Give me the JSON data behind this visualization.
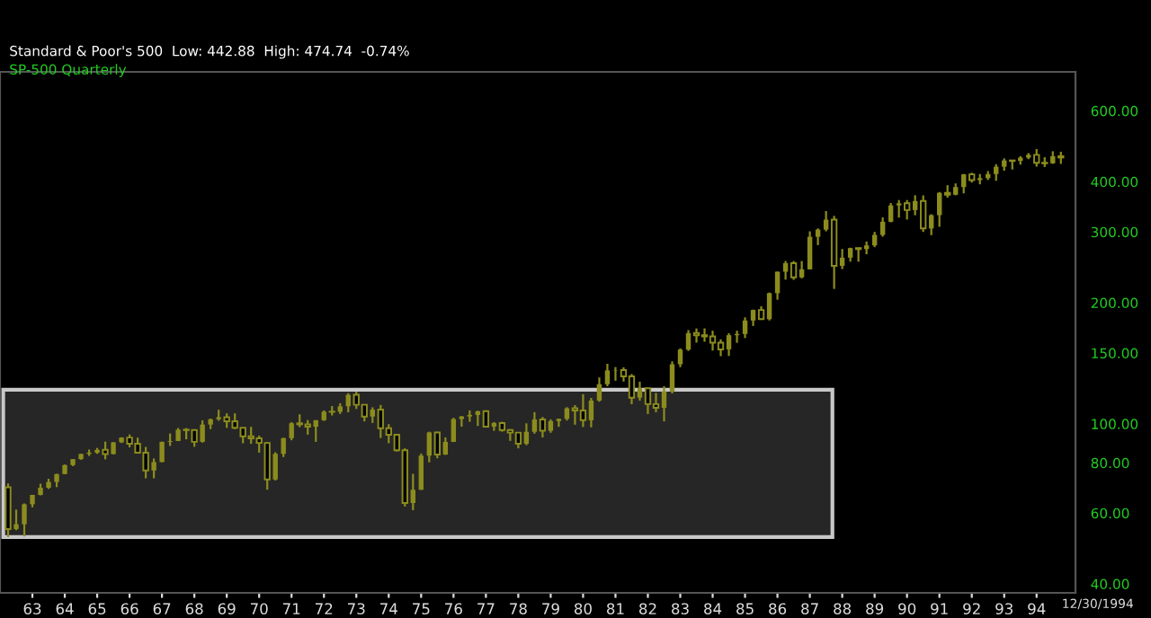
{
  "chart_data": {
    "type": "candlestick",
    "title": "Standard & Poor's 500  Low: 442.88  High: 474.74  -0.74%",
    "subtitle": "SP-500 Quarterly",
    "annotations": [
      "12/30/1994"
    ],
    "color": "#8c8c1e",
    "log": "y",
    "xlim": [
      1962.0,
      1995.2
    ],
    "ylim": [
      38,
      750
    ],
    "yticks": [
      {
        "value": 40,
        "label": "40.00"
      },
      {
        "value": 60,
        "label": "60.00"
      },
      {
        "value": 80,
        "label": "80.00"
      },
      {
        "value": 100,
        "label": "100.00"
      },
      {
        "value": 150,
        "label": "150.00"
      },
      {
        "value": 200,
        "label": "200.00"
      },
      {
        "value": 300,
        "label": "300.00"
      },
      {
        "value": 400,
        "label": "400.00"
      },
      {
        "value": 600,
        "label": "600.00"
      }
    ],
    "xticks": [
      {
        "value": 1963,
        "label": "63"
      },
      {
        "value": 1964,
        "label": "64"
      },
      {
        "value": 1965,
        "label": "65"
      },
      {
        "value": 1966,
        "label": "66"
      },
      {
        "value": 1967,
        "label": "67"
      },
      {
        "value": 1968,
        "label": "68"
      },
      {
        "value": 1969,
        "label": "69"
      },
      {
        "value": 1970,
        "label": "70"
      },
      {
        "value": 1971,
        "label": "71"
      },
      {
        "value": 1972,
        "label": "72"
      },
      {
        "value": 1973,
        "label": "73"
      },
      {
        "value": 1974,
        "label": "74"
      },
      {
        "value": 1975,
        "label": "75"
      },
      {
        "value": 1976,
        "label": "76"
      },
      {
        "value": 1977,
        "label": "77"
      },
      {
        "value": 1978,
        "label": "78"
      },
      {
        "value": 1979,
        "label": "79"
      },
      {
        "value": 1980,
        "label": "80"
      },
      {
        "value": 1981,
        "label": "81"
      },
      {
        "value": 1982,
        "label": "82"
      },
      {
        "value": 1983,
        "label": "83"
      },
      {
        "value": 1984,
        "label": "84"
      },
      {
        "value": 1985,
        "label": "85"
      },
      {
        "value": 1986,
        "label": "86"
      },
      {
        "value": 1987,
        "label": "87"
      },
      {
        "value": 1988,
        "label": "88"
      },
      {
        "value": 1989,
        "label": "89"
      },
      {
        "value": 1990,
        "label": "90"
      },
      {
        "value": 1991,
        "label": "91"
      },
      {
        "value": 1992,
        "label": "92"
      },
      {
        "value": 1993,
        "label": "93"
      },
      {
        "value": 1994,
        "label": "94"
      }
    ],
    "x": [
      1962.25,
      1962.5,
      1962.75,
      1963.0,
      1963.25,
      1963.5,
      1963.75,
      1964.0,
      1964.25,
      1964.5,
      1964.75,
      1965.0,
      1965.25,
      1965.5,
      1965.75,
      1966.0,
      1966.25,
      1966.5,
      1966.75,
      1967.0,
      1967.25,
      1967.5,
      1967.75,
      1968.0,
      1968.25,
      1968.5,
      1968.75,
      1969.0,
      1969.25,
      1969.5,
      1969.75,
      1970.0,
      1970.25,
      1970.5,
      1970.75,
      1971.0,
      1971.25,
      1971.5,
      1971.75,
      1972.0,
      1972.25,
      1972.5,
      1972.75,
      1973.0,
      1973.25,
      1973.5,
      1973.75,
      1974.0,
      1974.25,
      1974.5,
      1974.75,
      1975.0,
      1975.25,
      1975.5,
      1975.75,
      1976.0,
      1976.25,
      1976.5,
      1976.75,
      1977.0,
      1977.25,
      1977.5,
      1977.75,
      1978.0,
      1978.25,
      1978.5,
      1978.75,
      1979.0,
      1979.25,
      1979.5,
      1979.75,
      1980.0,
      1980.25,
      1980.5,
      1980.75,
      1981.0,
      1981.25,
      1981.5,
      1981.75,
      1982.0,
      1982.25,
      1982.5,
      1982.75,
      1983.0,
      1983.25,
      1983.5,
      1983.75,
      1984.0,
      1984.25,
      1984.5,
      1984.75,
      1985.0,
      1985.25,
      1985.5,
      1985.75,
      1986.0,
      1986.25,
      1986.5,
      1986.75,
      1987.0,
      1987.25,
      1987.5,
      1987.75,
      1988.0,
      1988.25,
      1988.5,
      1988.75,
      1989.0,
      1989.25,
      1989.5,
      1989.75,
      1990.0,
      1990.25,
      1990.5,
      1990.75,
      1991.0,
      1991.25,
      1991.5,
      1991.75,
      1992.0,
      1992.25,
      1992.5,
      1992.75,
      1993.0,
      1993.25,
      1993.5,
      1993.75,
      1994.0,
      1994.25,
      1994.5,
      1994.75
    ],
    "ohlc": [
      [
        69.5,
        71.1,
        52.3,
        54.75
      ],
      [
        54.75,
        61.2,
        54.4,
        56.27
      ],
      [
        56.27,
        63.4,
        52.5,
        63.1
      ],
      [
        63.1,
        66.6,
        62.0,
        66.57
      ],
      [
        66.57,
        71.0,
        66.4,
        69.37
      ],
      [
        69.37,
        73.0,
        68.9,
        71.7
      ],
      [
        71.7,
        75.1,
        69.6,
        75.02
      ],
      [
        75.02,
        79.2,
        75.0,
        78.98
      ],
      [
        78.98,
        81.7,
        78.5,
        81.69
      ],
      [
        81.69,
        84.2,
        81.4,
        84.18
      ],
      [
        84.18,
        86.3,
        83.2,
        84.75
      ],
      [
        84.75,
        87.1,
        84.2,
        86.16
      ],
      [
        86.16,
        90.3,
        81.6,
        84.12
      ],
      [
        84.12,
        90.0,
        84.0,
        89.96
      ],
      [
        89.96,
        92.6,
        89.6,
        92.43
      ],
      [
        92.43,
        94.1,
        87.4,
        89.23
      ],
      [
        89.23,
        92.4,
        84.7,
        84.74
      ],
      [
        84.74,
        87.6,
        73.2,
        76.56
      ],
      [
        76.56,
        82.0,
        73.2,
        80.33
      ],
      [
        80.33,
        90.3,
        80.3,
        90.2
      ],
      [
        90.2,
        94.6,
        88.1,
        90.64
      ],
      [
        90.64,
        97.6,
        90.6,
        96.71
      ],
      [
        96.71,
        97.6,
        91.5,
        96.47
      ],
      [
        96.47,
        96.9,
        87.7,
        90.2
      ],
      [
        90.2,
        102.0,
        89.8,
        99.58
      ],
      [
        99.58,
        103.0,
        97.0,
        102.67
      ],
      [
        102.67,
        108.4,
        101.8,
        103.86
      ],
      [
        103.86,
        106.2,
        97.7,
        101.51
      ],
      [
        101.51,
        106.2,
        97.0,
        97.71
      ],
      [
        97.71,
        97.9,
        89.5,
        93.12
      ],
      [
        93.12,
        98.3,
        89.2,
        92.06
      ],
      [
        92.06,
        93.5,
        84.8,
        89.63
      ],
      [
        89.63,
        90.0,
        68.6,
        72.72
      ],
      [
        72.72,
        85.0,
        72.3,
        84.21
      ],
      [
        84.21,
        92.3,
        82.7,
        92.15
      ],
      [
        92.15,
        101.0,
        91.0,
        100.31
      ],
      [
        100.31,
        105.6,
        98.1,
        99.7
      ],
      [
        99.7,
        102.2,
        94.0,
        98.34
      ],
      [
        98.34,
        102.1,
        90.2,
        102.09
      ],
      [
        102.09,
        108.0,
        101.7,
        107.2
      ],
      [
        107.2,
        110.7,
        104.9,
        107.14
      ],
      [
        107.14,
        112.5,
        105.8,
        110.55
      ],
      [
        110.55,
        119.2,
        106.8,
        118.05
      ],
      [
        118.05,
        120.2,
        108.9,
        111.52
      ],
      [
        111.52,
        112.0,
        101.4,
        104.26
      ],
      [
        104.26,
        109.9,
        100.5,
        108.43
      ],
      [
        108.43,
        111.4,
        92.2,
        97.55
      ],
      [
        97.55,
        99.8,
        89.5,
        93.98
      ],
      [
        93.98,
        94.3,
        85.3,
        86.0
      ],
      [
        86.0,
        86.9,
        62.3,
        63.54
      ],
      [
        63.54,
        75.1,
        61.0,
        68.56
      ],
      [
        68.56,
        84.4,
        68.5,
        83.36
      ],
      [
        83.36,
        95.6,
        80.2,
        95.19
      ],
      [
        95.19,
        95.6,
        82.1,
        83.87
      ],
      [
        83.87,
        92.5,
        83.7,
        90.19
      ],
      [
        90.19,
        103.5,
        90.1,
        102.77
      ],
      [
        102.77,
        104.6,
        98.4,
        104.28
      ],
      [
        104.28,
        108.0,
        101.2,
        105.24
      ],
      [
        105.24,
        107.8,
        98.8,
        107.46
      ],
      [
        107.46,
        108.0,
        98.1,
        98.42
      ],
      [
        98.42,
        101.0,
        96.1,
        100.48
      ],
      [
        100.48,
        101.2,
        95.6,
        96.53
      ],
      [
        96.53,
        97.0,
        90.7,
        95.1
      ],
      [
        95.1,
        95.2,
        86.9,
        89.21
      ],
      [
        89.21,
        100.3,
        88.5,
        95.53
      ],
      [
        95.53,
        106.9,
        94.5,
        102.54
      ],
      [
        102.54,
        104.0,
        92.5,
        96.11
      ],
      [
        96.11,
        102.6,
        95.0,
        101.59
      ],
      [
        101.59,
        103.0,
        98.3,
        102.91
      ],
      [
        102.91,
        110.0,
        101.9,
        109.32
      ],
      [
        109.32,
        111.3,
        99.5,
        107.94
      ],
      [
        107.94,
        118.5,
        98.2,
        102.09
      ],
      [
        102.09,
        116.0,
        98.0,
        114.24
      ],
      [
        114.24,
        130.4,
        113.5,
        125.46
      ],
      [
        125.46,
        141.0,
        124.0,
        135.76
      ],
      [
        135.76,
        138.4,
        128.0,
        136.0
      ],
      [
        136.0,
        138.2,
        127.4,
        131.21
      ],
      [
        131.21,
        133.0,
        111.9,
        116.18
      ],
      [
        116.18,
        127.3,
        114.2,
        122.55
      ],
      [
        122.55,
        122.6,
        105.8,
        111.96
      ],
      [
        111.96,
        119.3,
        106.9,
        109.61
      ],
      [
        109.61,
        124.0,
        101.4,
        120.42
      ],
      [
        120.42,
        143.0,
        119.0,
        140.64
      ],
      [
        140.64,
        154.0,
        138.3,
        152.96
      ],
      [
        152.96,
        171.0,
        151.8,
        168.11
      ],
      [
        168.11,
        172.6,
        159.2,
        166.07
      ],
      [
        166.07,
        172.7,
        160.0,
        164.93
      ],
      [
        164.93,
        170.4,
        152.1,
        159.18
      ],
      [
        159.18,
        162.2,
        147.3,
        153.18
      ],
      [
        153.18,
        168.0,
        147.5,
        166.1
      ],
      [
        166.1,
        170.4,
        159.0,
        167.24
      ],
      [
        167.24,
        184.0,
        163.4,
        180.66
      ],
      [
        180.66,
        192.3,
        175.1,
        191.85
      ],
      [
        191.85,
        196.0,
        181.3,
        182.08
      ],
      [
        182.08,
        212.0,
        180.7,
        211.28
      ],
      [
        211.28,
        239.0,
        203.5,
        238.9
      ],
      [
        238.9,
        254.0,
        228.3,
        250.84
      ],
      [
        250.84,
        254.0,
        228.0,
        231.32
      ],
      [
        231.32,
        254.0,
        229.9,
        242.17
      ],
      [
        242.17,
        301.0,
        242.0,
        291.7
      ],
      [
        291.7,
        306.0,
        278.2,
        304.0
      ],
      [
        304.0,
        338.0,
        301.0,
        321.83
      ],
      [
        321.83,
        328.9,
        216.5,
        247.08
      ],
      [
        247.08,
        272.0,
        242.6,
        258.89
      ],
      [
        258.89,
        274.0,
        253.0,
        273.5
      ],
      [
        273.5,
        274.0,
        253.0,
        271.91
      ],
      [
        271.91,
        284.0,
        264.0,
        277.72
      ],
      [
        277.72,
        300.0,
        275.0,
        294.87
      ],
      [
        294.87,
        326.0,
        292.0,
        317.98
      ],
      [
        317.98,
        354.0,
        317.0,
        349.15
      ],
      [
        349.15,
        360.0,
        325.7,
        353.4
      ],
      [
        353.4,
        360.0,
        322.0,
        339.94
      ],
      [
        339.94,
        370.0,
        330.0,
        358.02
      ],
      [
        358.02,
        369.8,
        300.0,
        306.05
      ],
      [
        306.05,
        332.0,
        294.5,
        330.22
      ],
      [
        330.22,
        377.0,
        309.0,
        375.22
      ],
      [
        375.22,
        392.0,
        365.0,
        371.16
      ],
      [
        371.16,
        396.0,
        370.0,
        387.86
      ],
      [
        387.86,
        418.0,
        374.0,
        417.09
      ],
      [
        417.09,
        421.0,
        398.0,
        403.69
      ],
      [
        403.69,
        418.0,
        394.0,
        408.14
      ],
      [
        408.14,
        425.0,
        404.0,
        417.8
      ],
      [
        417.8,
        442.0,
        402.0,
        435.71
      ],
      [
        435.71,
        457.0,
        426.0,
        451.67
      ],
      [
        451.67,
        453.0,
        429.0,
        450.53
      ],
      [
        450.53,
        463.0,
        441.0,
        458.93
      ],
      [
        458.93,
        471.0,
        455.0,
        466.45
      ],
      [
        466.45,
        482.0,
        436.0,
        445.77
      ],
      [
        445.77,
        460.0,
        435.0,
        444.27
      ],
      [
        444.27,
        476.0,
        443.0,
        462.69
      ],
      [
        462.69,
        474.74,
        442.88,
        459.27
      ]
    ]
  }
}
